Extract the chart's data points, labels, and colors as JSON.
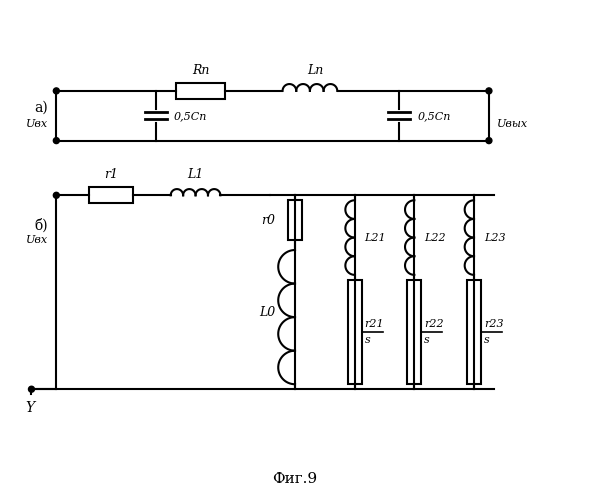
{
  "title": "Фиг.9",
  "label_a": "а)",
  "label_b": "б)",
  "label_Ubx_a": "Uвх",
  "label_Ubyx": "Uвых",
  "label_Ubx_b": "Uвх",
  "label_Rn": "Rn",
  "label_Ln": "Ln",
  "label_C1": "0,5Cn",
  "label_C2": "0,5Cn",
  "label_r1": "r1",
  "label_L1": "L1",
  "label_r0": "r0",
  "label_L0": "L0",
  "label_L21": "L21",
  "label_L22": "L22",
  "label_L23": "L23",
  "label_r21s": "r21\ns",
  "label_r22s": "r22\ns",
  "label_r23s": "r23\ns",
  "label_Y": "Y",
  "bg_color": "#ffffff",
  "line_color": "#000000",
  "font_size": 10,
  "title_font_size": 12
}
